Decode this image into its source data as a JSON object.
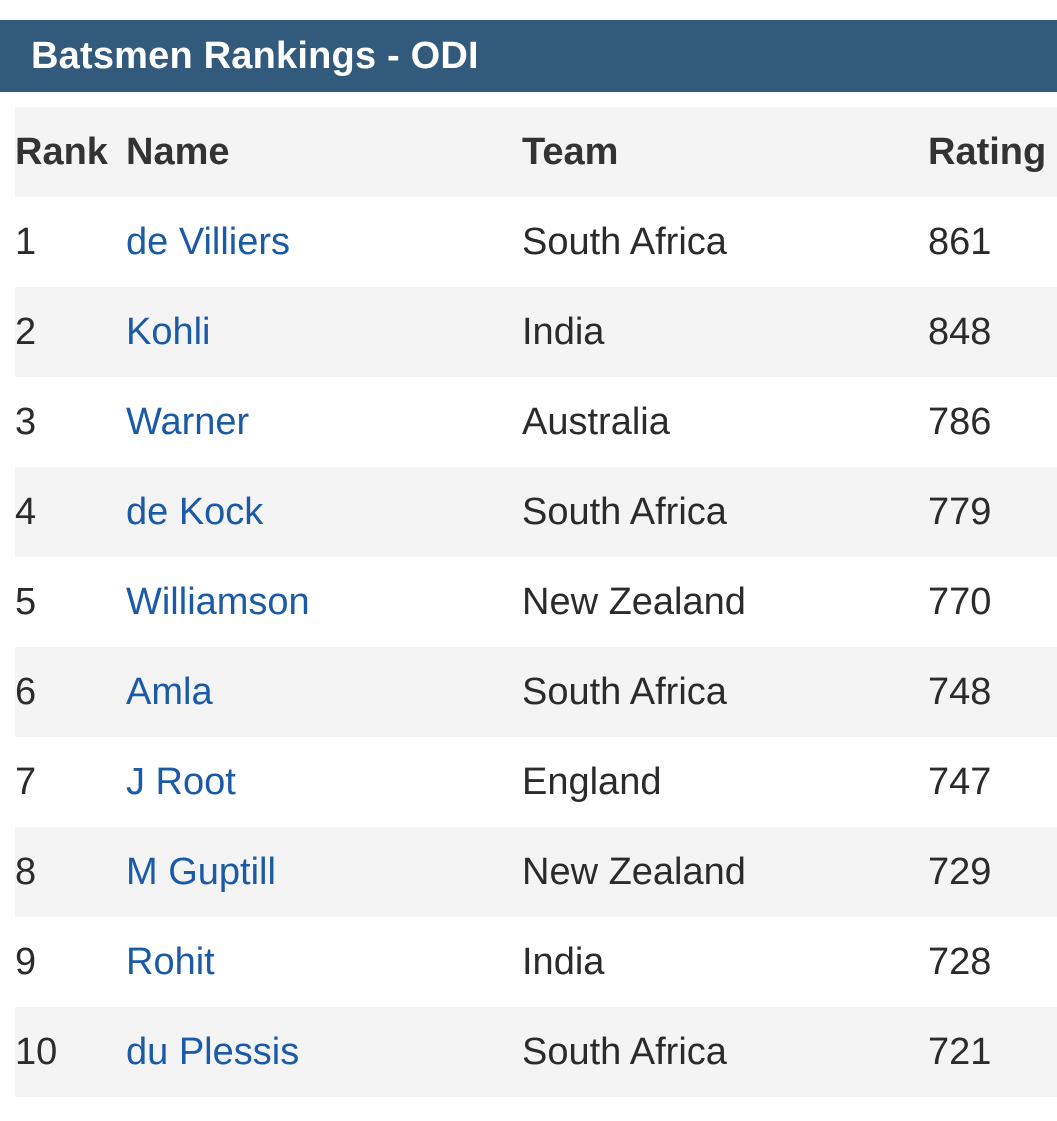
{
  "header": {
    "title": "Batsmen Rankings - ODI"
  },
  "table": {
    "columns": [
      "Rank",
      "Name",
      "Team",
      "Rating"
    ],
    "rows": [
      {
        "rank": "1",
        "name": "de Villiers",
        "team": "South Africa",
        "rating": "861"
      },
      {
        "rank": "2",
        "name": "Kohli",
        "team": "India",
        "rating": "848"
      },
      {
        "rank": "3",
        "name": "Warner",
        "team": "Australia",
        "rating": "786"
      },
      {
        "rank": "4",
        "name": "de Kock",
        "team": "South Africa",
        "rating": "779"
      },
      {
        "rank": "5",
        "name": "Williamson",
        "team": "New Zealand",
        "rating": "770"
      },
      {
        "rank": "6",
        "name": "Amla",
        "team": "South Africa",
        "rating": "748"
      },
      {
        "rank": "7",
        "name": "J Root",
        "team": "England",
        "rating": "747"
      },
      {
        "rank": "8",
        "name": "M Guptill",
        "team": "New Zealand",
        "rating": "729"
      },
      {
        "rank": "9",
        "name": "Rohit",
        "team": "India",
        "rating": "728"
      },
      {
        "rank": "10",
        "name": "du Plessis",
        "team": "South Africa",
        "rating": "721"
      }
    ]
  },
  "colors": {
    "header_background": "#325a7c",
    "header_text": "#ffffff",
    "link": "#1a5aa6",
    "row_shade": "#f4f4f4",
    "text": "#2b2b2b"
  }
}
